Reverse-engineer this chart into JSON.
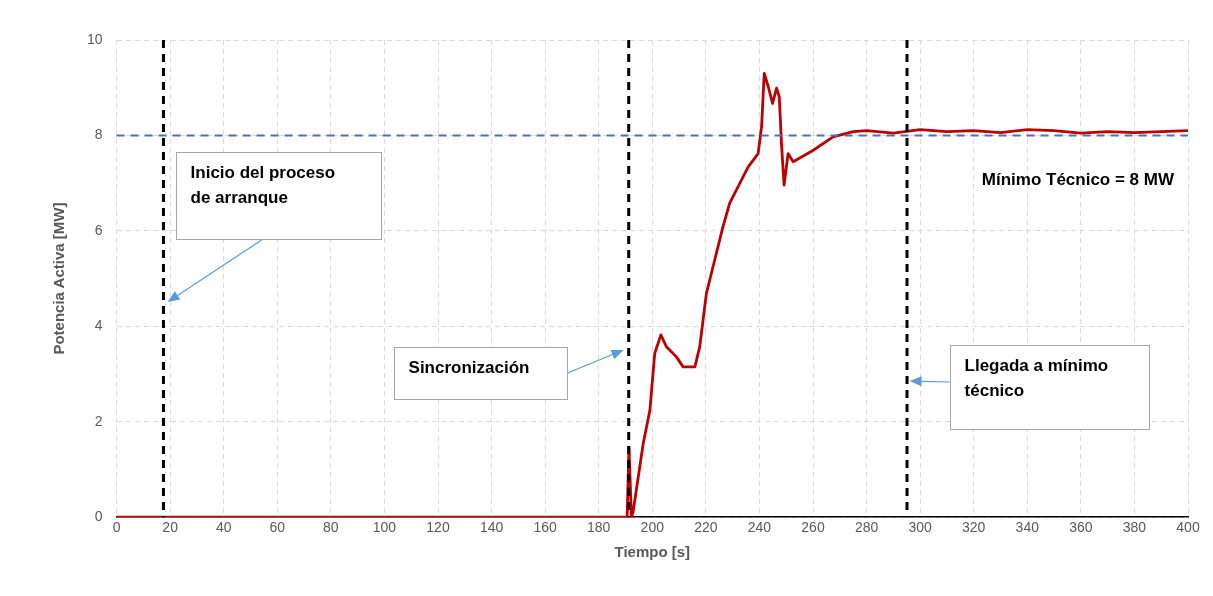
{
  "chart_data": {
    "type": "line",
    "xlabel": "Tiempo [s]",
    "ylabel": "Potencia Activa [MW]",
    "x": [
      0,
      50,
      100,
      150,
      190.6,
      191.3,
      192.2,
      192.8,
      196.6,
      199.1,
      200.9,
      203.2,
      205.3,
      209.0,
      211.5,
      215.9,
      217.7,
      220.2,
      223.3,
      226.4,
      228.9,
      232.7,
      235.8,
      239.5,
      240.8,
      241.8,
      243.3,
      244.9,
      246.4,
      247.4,
      248.3,
      249.2,
      250.7,
      252.6,
      260.1,
      267.5,
      275,
      280,
      290,
      300,
      310,
      320,
      330,
      340,
      350,
      360,
      370,
      380,
      390,
      400
    ],
    "series": [
      {
        "color": "#c00000",
        "values": [
          0,
          0,
          0,
          0,
          0,
          1.47,
          0,
          0.1,
          1.54,
          2.24,
          3.43,
          3.82,
          3.57,
          3.36,
          3.15,
          3.15,
          3.57,
          4.69,
          5.39,
          6.09,
          6.58,
          7.0,
          7.34,
          7.62,
          8.18,
          9.3,
          9.02,
          8.67,
          8.99,
          8.81,
          7.76,
          6.96,
          7.62,
          7.45,
          7.69,
          7.97,
          8.08,
          8.1,
          8.05,
          8.12,
          8.08,
          8.1,
          8.06,
          8.12,
          8.1,
          8.05,
          8.08,
          8.06,
          8.08,
          8.1
        ]
      }
    ],
    "xlim": [
      0,
      400
    ],
    "xticks": [
      0,
      20,
      40,
      60,
      80,
      100,
      120,
      140,
      160,
      180,
      200,
      220,
      240,
      260,
      280,
      300,
      320,
      340,
      360,
      380,
      400
    ],
    "ylim": [
      0,
      10
    ],
    "yticks": [
      0,
      2,
      4,
      6,
      8,
      10
    ],
    "grid": true,
    "marker": "none",
    "line_style": "solid",
    "legend": false,
    "ref_lines": [
      {
        "axis": "x",
        "value": 17.5,
        "color": "#000000",
        "line_style": "dashed"
      },
      {
        "axis": "x",
        "value": 191.2,
        "color": "#000000",
        "line_style": "dashed"
      },
      {
        "axis": "x",
        "value": 295.1,
        "color": "#000000",
        "line_style": "dashed"
      },
      {
        "axis": "y",
        "value": 8,
        "label": "Mínimo Técnico = 8 MW",
        "color": "#4472c4",
        "line_style": "dashed"
      }
    ],
    "annotations": [
      "Inicio del proceso de arranque",
      "Sincronización",
      "Llegada a mínimo técnico"
    ]
  }
}
